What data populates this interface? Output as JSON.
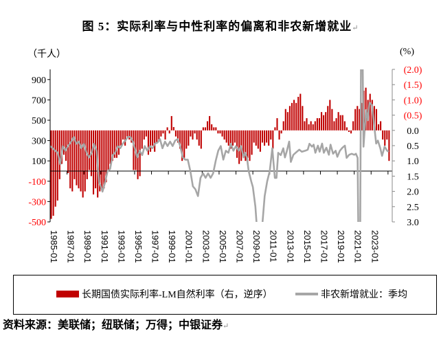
{
  "title": "图 5：实际利率与中性利率的偏离和非农新增就业",
  "return_mark": "↵",
  "unit_left": "（千人）",
  "unit_right": "(%)",
  "source": "资料来源：美联储；纽联储；万得；中银证券",
  "colors": {
    "bar": "#C00000",
    "line": "#A6A6A6",
    "neg_label": "#FF0000"
  },
  "chart_data": {
    "type": "bar+line",
    "title": "图 5：实际利率与中性利率的偏离和非农新增就业",
    "left_axis": {
      "label": "（千人）",
      "range": [
        -500,
        1000
      ],
      "ticks": [
        900,
        700,
        500,
        300,
        100,
        -100,
        -300,
        -500
      ]
    },
    "right_axis": {
      "label": "(%)",
      "range": [
        -2.0,
        3.0
      ],
      "reversed": true,
      "ticks": [
        -2.0,
        -1.5,
        -1.0,
        -0.5,
        0.0,
        0.5,
        1.0,
        1.5,
        2.0,
        2.5,
        3.0
      ],
      "tick_labels": [
        "(2.0)",
        "(1.5)",
        "(1.0)",
        "(0.5)",
        "0.0",
        "0.5",
        "1.0",
        "1.5",
        "2.0",
        "2.5",
        "3.0"
      ]
    },
    "x_ticks": [
      "1985-01",
      "1987-01",
      "1989-01",
      "1991-01",
      "1993-01",
      "1995-01",
      "1997-01",
      "1999-01",
      "2001-01",
      "2003-01",
      "2005-01",
      "2007-01",
      "2009-01",
      "2011-01",
      "2013-01",
      "2015-01",
      "2017-01",
      "2019-01",
      "2021-01",
      "2023-01"
    ],
    "x_range": [
      1985.0,
      2025.5
    ],
    "legend": {
      "placement": "bottom",
      "bar_label": "长期国债实际利率-LM自然利率（右，逆序）",
      "line_label": "非农新增就业：季均"
    },
    "bar_series": {
      "name": "长期国债实际利率-LM自然利率（右，逆序）",
      "start": 1985.0,
      "frequency": "quarterly",
      "values": [
        2.9,
        2.8,
        2.5,
        2.3,
        1.6,
        1.1,
        0.8,
        1.0,
        1.4,
        1.9,
        2.0,
        1.6,
        1.8,
        1.9,
        2.0,
        2.2,
        2.0,
        1.6,
        1.3,
        1.5,
        2.1,
        1.9,
        2.2,
        2.0,
        1.9,
        1.9,
        1.7,
        1.3,
        1.1,
        1.0,
        0.9,
        0.9,
        0.8,
        0.5,
        0.3,
        0.5,
        0.2,
        0.3,
        0.4,
        1.3,
        1.3,
        1.6,
        1.5,
        0.6,
        0.3,
        0.2,
        0.8,
        0.7,
        0.5,
        0.7,
        0.4,
        0.3,
        0.2,
        0.1,
        0.3,
        -0.1,
        0.1,
        -0.47,
        -0.11,
        0.2,
        0.4,
        0.6,
        1.0,
        0.9,
        0.6,
        0.5,
        0.2,
        0.3,
        0.1,
        0.3,
        0.5,
        0.6,
        -0.1,
        -0.1,
        -0.3,
        -0.47,
        -0.2,
        -0.1,
        -0.1,
        0.1,
        0.1,
        0.2,
        0.3,
        0.4,
        0.5,
        0.6,
        0.5,
        0.4,
        0.9,
        1.1,
        1.0,
        0.8,
        1.0,
        0.9,
        1.0,
        0.8,
        0.4,
        0.5,
        0.6,
        0.7,
        0.4,
        0.5,
        0.4,
        0.5,
        0.3,
        0.6,
        -0.1,
        -0.4,
        0.3,
        0.1,
        -0.3,
        -0.7,
        -0.6,
        -0.8,
        -0.9,
        -1.0,
        -0.9,
        -1.1,
        -1.2,
        -0.8,
        -0.3,
        -0.4,
        -0.2,
        -0.3,
        -0.2,
        -0.3,
        -0.4,
        -0.4,
        -0.6,
        -0.5,
        -0.6,
        -0.8,
        -1.0,
        -0.7,
        -0.3,
        -0.4,
        -0.6,
        -0.5,
        -0.5,
        -0.3,
        -0.1,
        0.05,
        0.1,
        -0.3,
        -0.7,
        -0.8,
        -0.7,
        -0.9,
        -1.3,
        -1.4,
        -1.0,
        -1.2,
        -1.0,
        -0.8,
        -0.7,
        -0.2,
        -0.3,
        0.3,
        0.5,
        0.3,
        1.0
      ]
    },
    "line_series": {
      "name": "非农新增就业：季均",
      "points": [
        [
          1985.0,
          246
        ],
        [
          1985.3,
          224
        ],
        [
          1985.6,
          200
        ],
        [
          1985.9,
          180
        ],
        [
          1986.2,
          67
        ],
        [
          1986.5,
          246
        ],
        [
          1986.8,
          200
        ],
        [
          1987.1,
          246
        ],
        [
          1987.5,
          290
        ],
        [
          1987.8,
          336
        ],
        [
          1988.1,
          269
        ],
        [
          1988.4,
          290
        ],
        [
          1988.7,
          224
        ],
        [
          1989.0,
          269
        ],
        [
          1989.3,
          180
        ],
        [
          1989.6,
          134
        ],
        [
          1989.9,
          180
        ],
        [
          1990.2,
          269
        ],
        [
          1990.5,
          200
        ],
        [
          1990.8,
          -112
        ],
        [
          1991.0,
          -150
        ],
        [
          1991.2,
          -202
        ],
        [
          1991.5,
          -112
        ],
        [
          1991.8,
          0
        ],
        [
          1992.1,
          20
        ],
        [
          1992.4,
          157
        ],
        [
          1992.7,
          180
        ],
        [
          1993.0,
          246
        ],
        [
          1993.3,
          224
        ],
        [
          1993.6,
          269
        ],
        [
          1993.9,
          300
        ],
        [
          1994.2,
          336
        ],
        [
          1994.5,
          336
        ],
        [
          1994.8,
          290
        ],
        [
          1995.1,
          200
        ],
        [
          1995.3,
          134
        ],
        [
          1995.6,
          200
        ],
        [
          1995.9,
          157
        ],
        [
          1996.2,
          246
        ],
        [
          1996.5,
          200
        ],
        [
          1996.8,
          246
        ],
        [
          1997.1,
          224
        ],
        [
          1997.4,
          269
        ],
        [
          1997.7,
          280
        ],
        [
          1998.0,
          314
        ],
        [
          1998.3,
          224
        ],
        [
          1998.6,
          290
        ],
        [
          1998.9,
          246
        ],
        [
          1999.2,
          290
        ],
        [
          1999.5,
          246
        ],
        [
          1999.8,
          300
        ],
        [
          2000.1,
          314
        ],
        [
          2000.4,
          246
        ],
        [
          2000.7,
          134
        ],
        [
          2001.0,
          112
        ],
        [
          2001.3,
          112
        ],
        [
          2001.6,
          0
        ],
        [
          2001.9,
          -150
        ],
        [
          2002.2,
          -180
        ],
        [
          2002.5,
          -246
        ],
        [
          2002.8,
          -67
        ],
        [
          2003.1,
          -22
        ],
        [
          2003.4,
          -67
        ],
        [
          2003.7,
          -22
        ],
        [
          2004.0,
          -67
        ],
        [
          2004.3,
          -22
        ],
        [
          2004.6,
          100
        ],
        [
          2004.9,
          200
        ],
        [
          2005.2,
          246
        ],
        [
          2005.5,
          112
        ],
        [
          2005.8,
          200
        ],
        [
          2006.1,
          180
        ],
        [
          2006.4,
          269
        ],
        [
          2006.7,
          200
        ],
        [
          2007.0,
          246
        ],
        [
          2007.3,
          200
        ],
        [
          2007.6,
          246
        ],
        [
          2007.9,
          134
        ],
        [
          2008.1,
          180
        ],
        [
          2008.3,
          134
        ],
        [
          2008.5,
          0
        ],
        [
          2008.8,
          -100
        ],
        [
          2009.0,
          -157
        ],
        [
          2009.3,
          -350
        ],
        [
          2009.6,
          -700
        ],
        [
          2010.0,
          -650
        ],
        [
          2010.4,
          -246
        ],
        [
          2010.7,
          -100
        ],
        [
          2011.0,
          0
        ],
        [
          2011.3,
          224
        ],
        [
          2011.6,
          -67
        ],
        [
          2011.8,
          -67
        ],
        [
          2012.0,
          180
        ],
        [
          2012.3,
          157
        ],
        [
          2012.6,
          224
        ],
        [
          2012.8,
          134
        ],
        [
          2013.0,
          190
        ],
        [
          2013.3,
          290
        ],
        [
          2013.5,
          90
        ],
        [
          2013.8,
          160
        ],
        [
          2014.2,
          190
        ],
        [
          2014.5,
          210
        ],
        [
          2014.8,
          190
        ],
        [
          2015.2,
          200
        ],
        [
          2015.5,
          210
        ],
        [
          2015.7,
          269
        ],
        [
          2016.0,
          240
        ],
        [
          2016.2,
          260
        ],
        [
          2016.4,
          180
        ],
        [
          2016.7,
          250
        ],
        [
          2016.9,
          190
        ],
        [
          2017.2,
          270
        ],
        [
          2017.4,
          180
        ],
        [
          2017.7,
          230
        ],
        [
          2018.0,
          160
        ],
        [
          2018.2,
          260
        ],
        [
          2018.5,
          170
        ],
        [
          2018.8,
          200
        ],
        [
          2019.0,
          140
        ],
        [
          2019.3,
          200
        ],
        [
          2019.6,
          230
        ],
        [
          2019.9,
          250
        ],
        [
          2020.1,
          130
        ],
        [
          2020.4,
          160
        ],
        [
          2020.7,
          170
        ],
        [
          2021.0,
          160
        ],
        [
          2021.2,
          170
        ],
        [
          2021.4,
          130
        ],
        [
          2021.5,
          -700
        ],
        [
          2021.7,
          -700
        ],
        [
          2021.8,
          1050
        ],
        [
          2022.0,
          1050
        ],
        [
          2022.1,
          240
        ],
        [
          2022.4,
          600
        ],
        [
          2022.6,
          500
        ],
        [
          2022.8,
          672
        ],
        [
          2023.1,
          650
        ],
        [
          2023.4,
          420
        ],
        [
          2023.6,
          270
        ],
        [
          2023.8,
          300
        ],
        [
          2024.1,
          220
        ],
        [
          2024.3,
          150
        ],
        [
          2024.6,
          240
        ],
        [
          2024.9,
          200
        ],
        [
          2025.1,
          190
        ]
      ]
    }
  }
}
